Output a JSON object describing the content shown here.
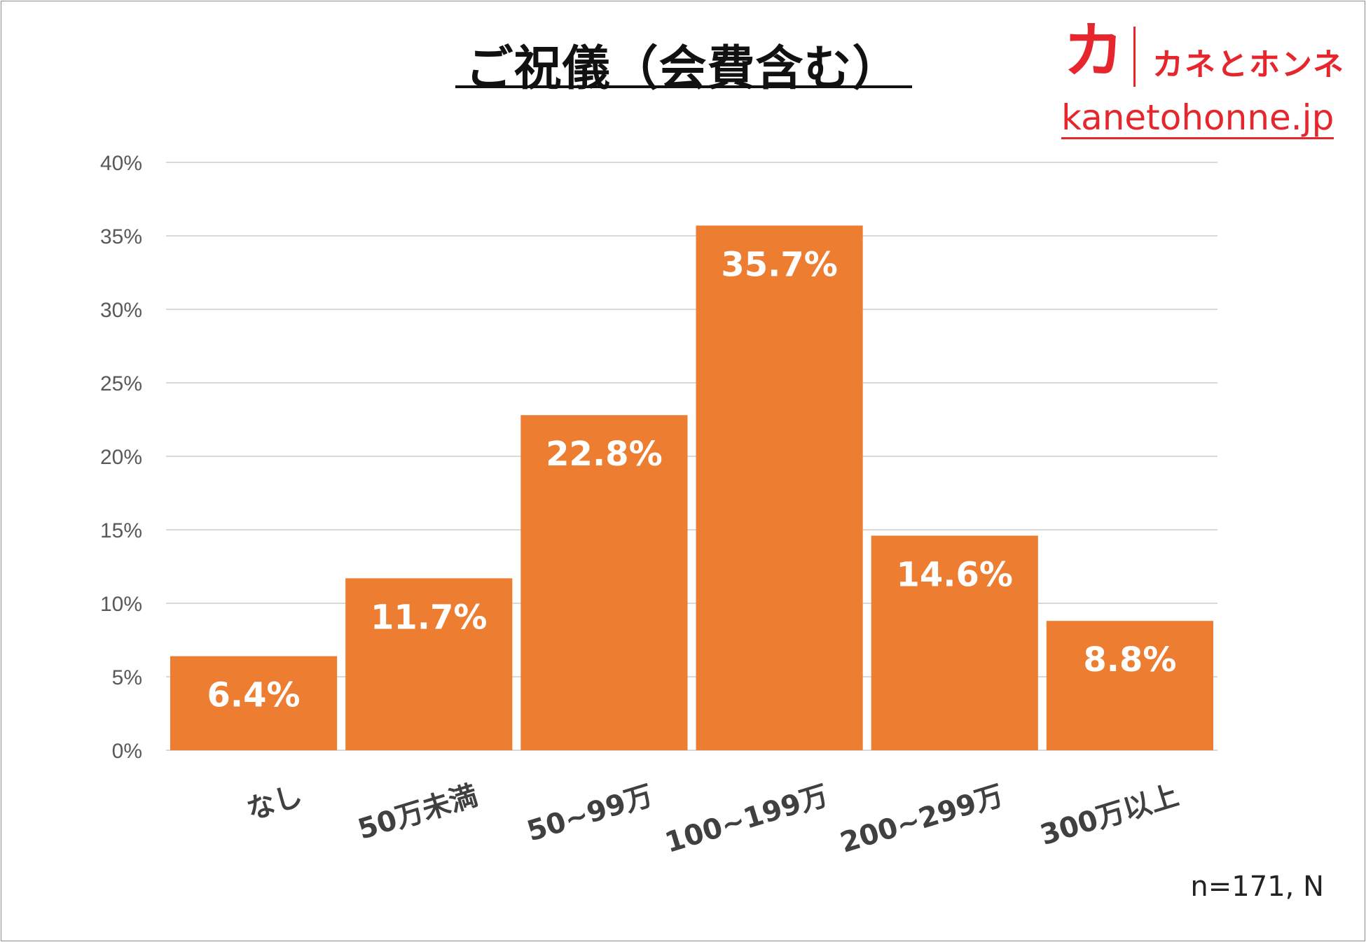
{
  "title": "ご祝儀（会費含む）",
  "brand": {
    "mark": "カ",
    "name": "カネとホンネ",
    "url": "kanetohonne.jp",
    "color": "#e6252c"
  },
  "note": "n=171, N",
  "chart_data": {
    "type": "bar",
    "title": "ご祝儀（会費含む）",
    "categories": [
      "なし",
      "50万未満",
      "50~99万",
      "100~199万",
      "200~299万",
      "300万以上"
    ],
    "values": [
      6.4,
      11.7,
      22.8,
      35.7,
      14.6,
      8.8
    ],
    "data_labels": [
      "6.4%",
      "11.7%",
      "22.8%",
      "35.7%",
      "14.6%",
      "8.8%"
    ],
    "y_ticks": [
      "0%",
      "5%",
      "10%",
      "15%",
      "20%",
      "25%",
      "30%",
      "35%",
      "40%"
    ],
    "ylim": [
      0,
      40
    ],
    "y_unit": "%",
    "grid": true,
    "legend": "none",
    "bar_color": "#ed7d31",
    "grid_color": "#d9d9d9"
  }
}
